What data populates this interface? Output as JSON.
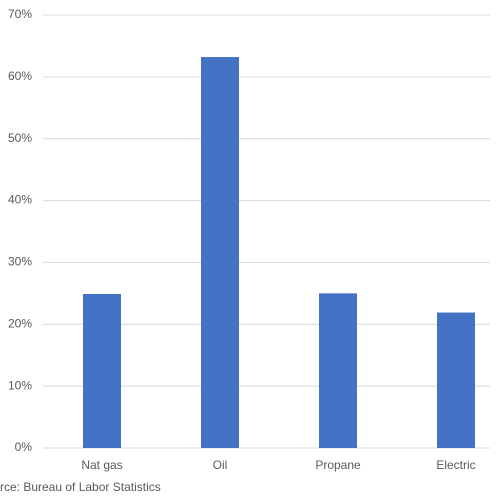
{
  "chart_data": {
    "type": "bar",
    "categories": [
      "Nat gas",
      "Oil",
      "Propane",
      "Electric"
    ],
    "values": [
      24.9,
      63.2,
      25.0,
      21.9
    ],
    "color": "#4472c4",
    "ylim": [
      0,
      70
    ],
    "yticks": [
      {
        "value": 0,
        "label": "0%"
      },
      {
        "value": 10,
        "label": "10%"
      },
      {
        "value": 20,
        "label": "20%"
      },
      {
        "value": 30,
        "label": "30%"
      },
      {
        "value": 40,
        "label": "40%"
      },
      {
        "value": 50,
        "label": "50%"
      },
      {
        "value": 60,
        "label": "60%"
      },
      {
        "value": 70,
        "label": "70%"
      }
    ],
    "grid": true,
    "source": "rce: Bureau of Labor Statistics"
  }
}
